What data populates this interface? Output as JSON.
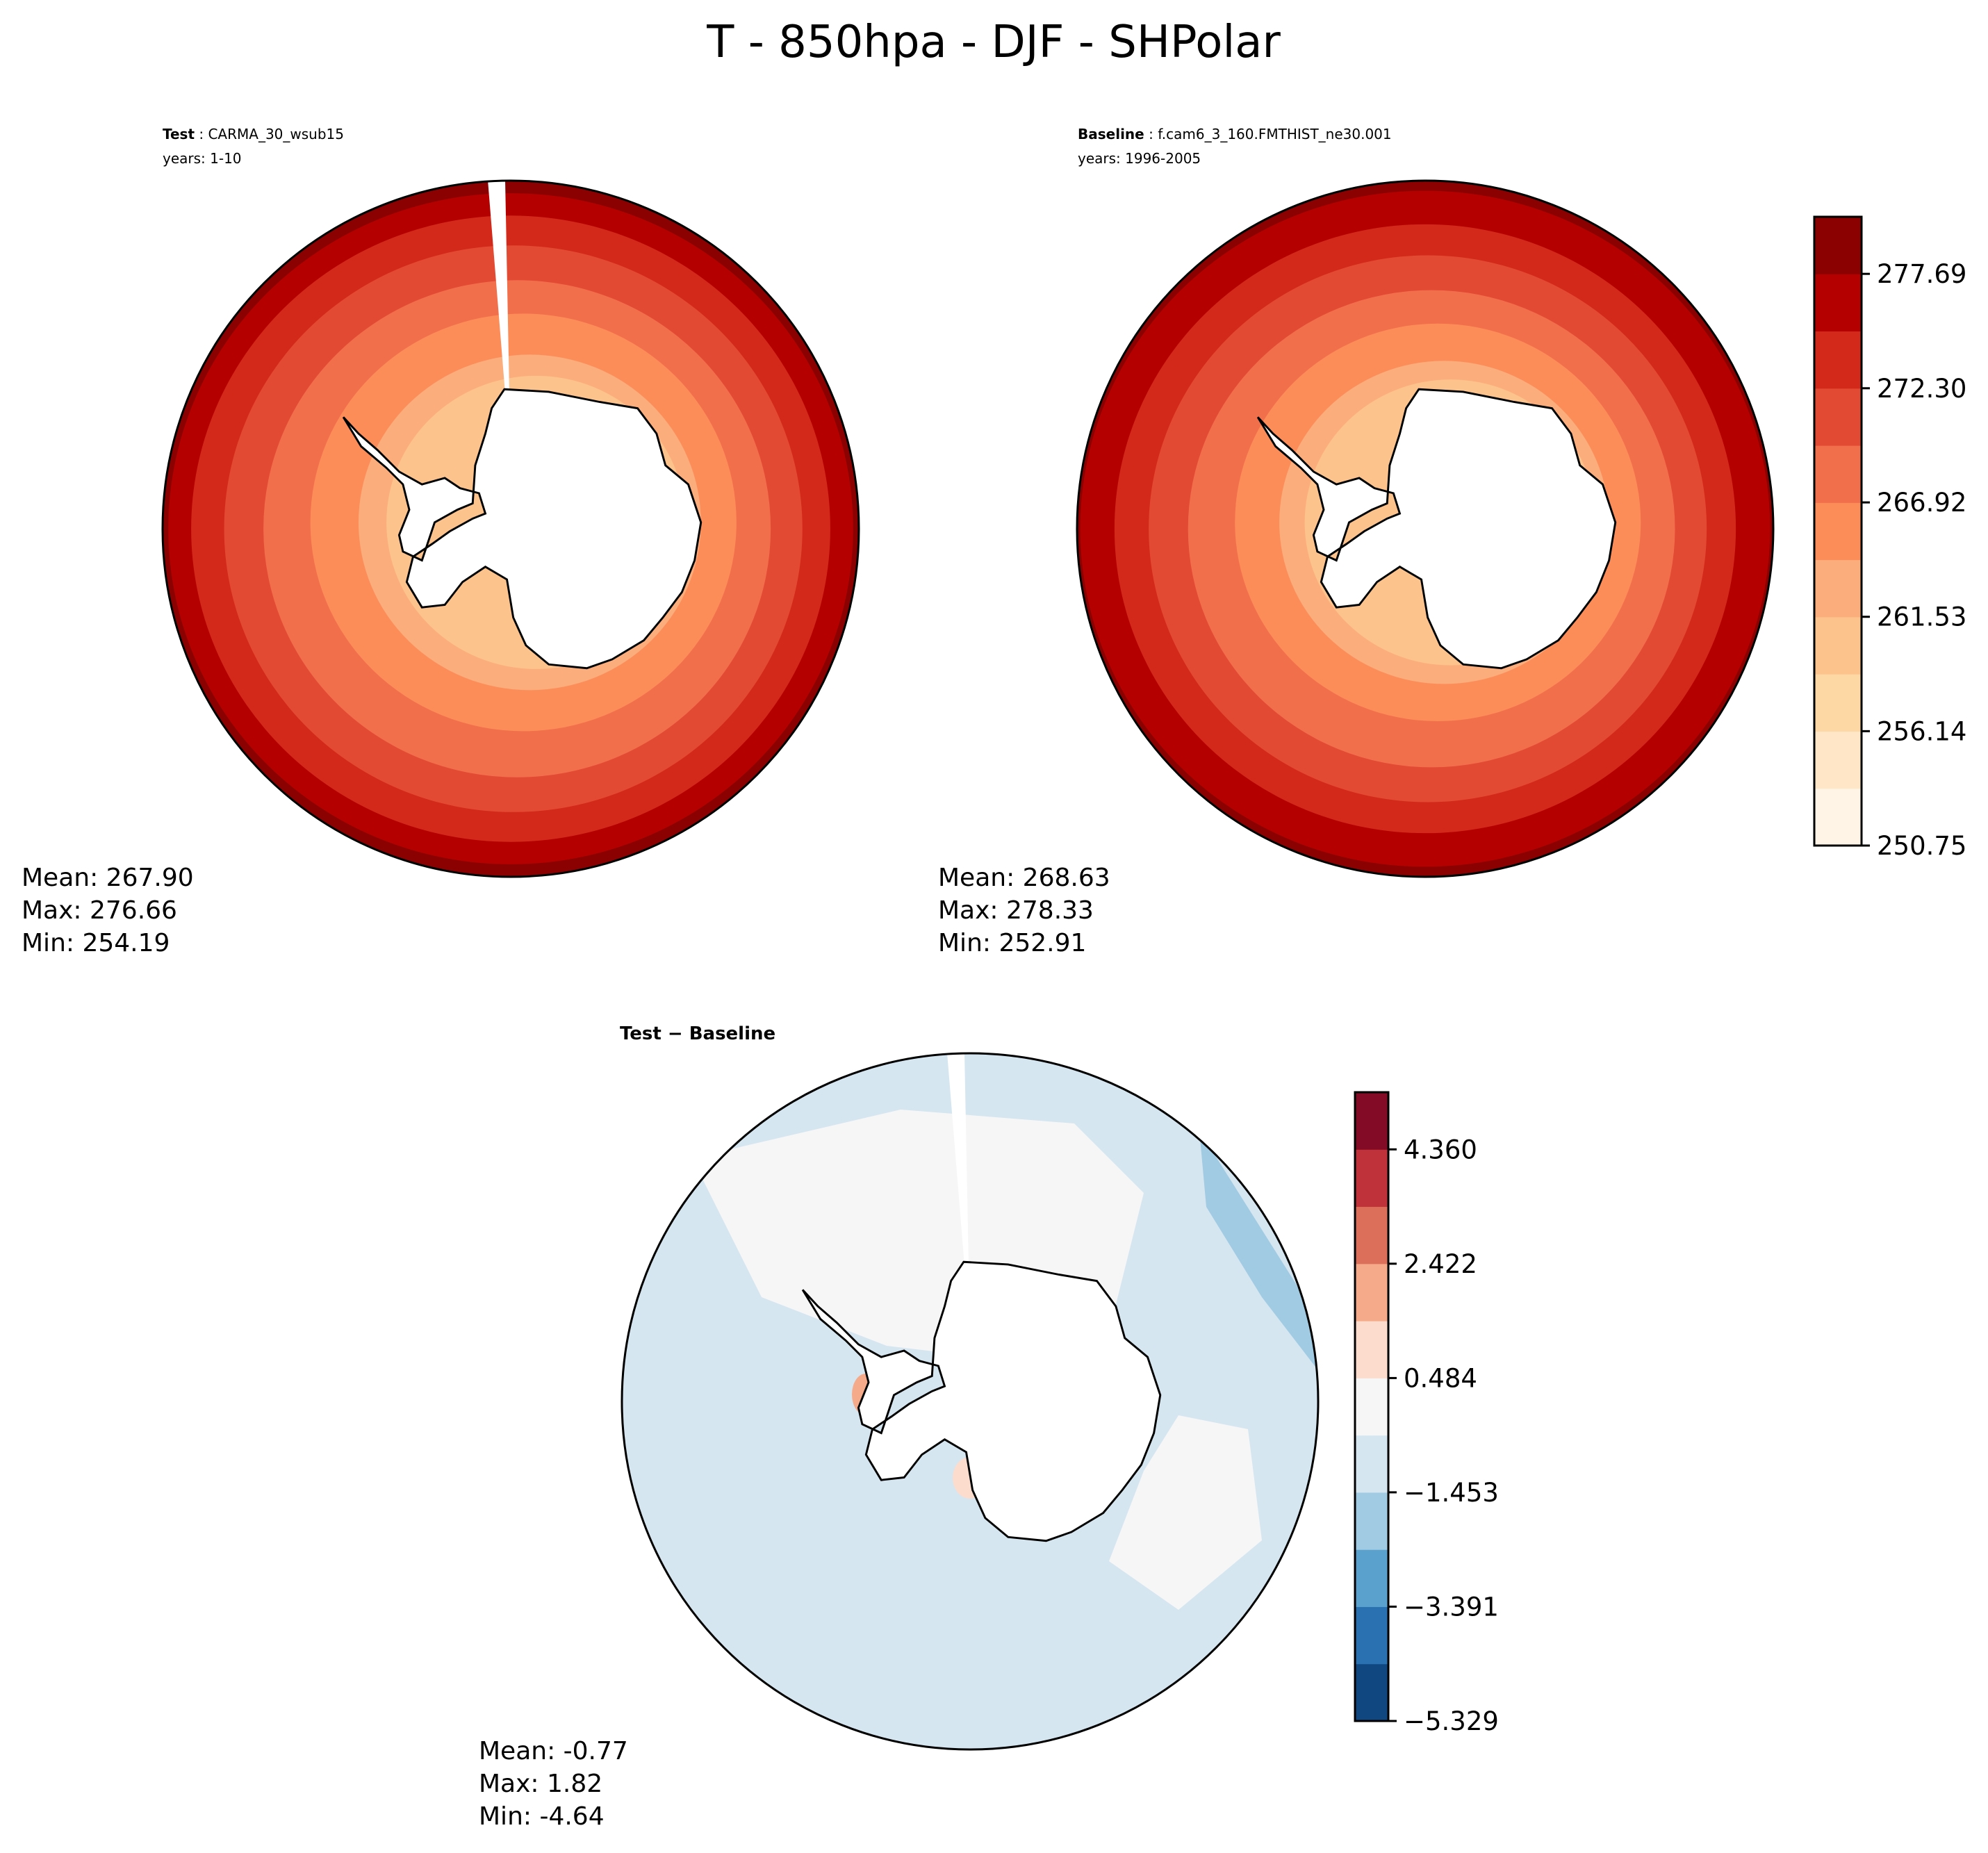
{
  "chart_data": [
    {
      "type": "heatmap",
      "projection": "south-polar-stereographic",
      "title": "T - 850hpa - DJF - SHPolar",
      "panel_label_bold": "Test",
      "panel_label": "CARMA_30_wsub15",
      "years": "years: 1-10",
      "stats": {
        "mean": "Mean: 267.90",
        "max": "Max: 276.66",
        "min": "Min: 254.19"
      },
      "colormap": "OrRd"
    },
    {
      "type": "heatmap",
      "projection": "south-polar-stereographic",
      "panel_label_bold": "Baseline",
      "panel_label": "f.cam6_3_160.FMTHIST_ne30.001",
      "years": "years: 1996-2005",
      "stats": {
        "mean": "Mean: 268.63",
        "max": "Max: 278.33",
        "min": "Min: 252.91"
      },
      "colormap": "OrRd",
      "colorbar": {
        "ticks": [
          "250.75",
          "256.14",
          "261.53",
          "266.92",
          "272.30",
          "277.69"
        ],
        "range": [
          250.75,
          280.38
        ],
        "colors": [
          "#fff4e5",
          "#fee6c6",
          "#fdd7a4",
          "#fdc38d",
          "#fcad7c",
          "#fc8d59",
          "#f26f4c",
          "#e34a33",
          "#d3291b",
          "#b50000",
          "#8b0000"
        ]
      }
    },
    {
      "type": "heatmap",
      "projection": "south-polar-stereographic",
      "panel_label_bold": "Test − Baseline",
      "stats": {
        "mean": "Mean: -0.77",
        "max": "Max:  1.82",
        "min": "Min: -4.64"
      },
      "colormap": "RdBu_r",
      "colorbar": {
        "ticks": [
          "−5.329",
          "−3.391",
          "−1.453",
          "0.484",
          "2.422",
          "4.360"
        ],
        "range": [
          -5.329,
          5.329
        ],
        "colors": [
          "#114781",
          "#2a71b2",
          "#5ba1cd",
          "#a0cbe2",
          "#d5e6f1",
          "#f6f6f6",
          "#fbdccd",
          "#f5aa89",
          "#dc6f59",
          "#c0323a",
          "#830b25"
        ]
      }
    }
  ]
}
